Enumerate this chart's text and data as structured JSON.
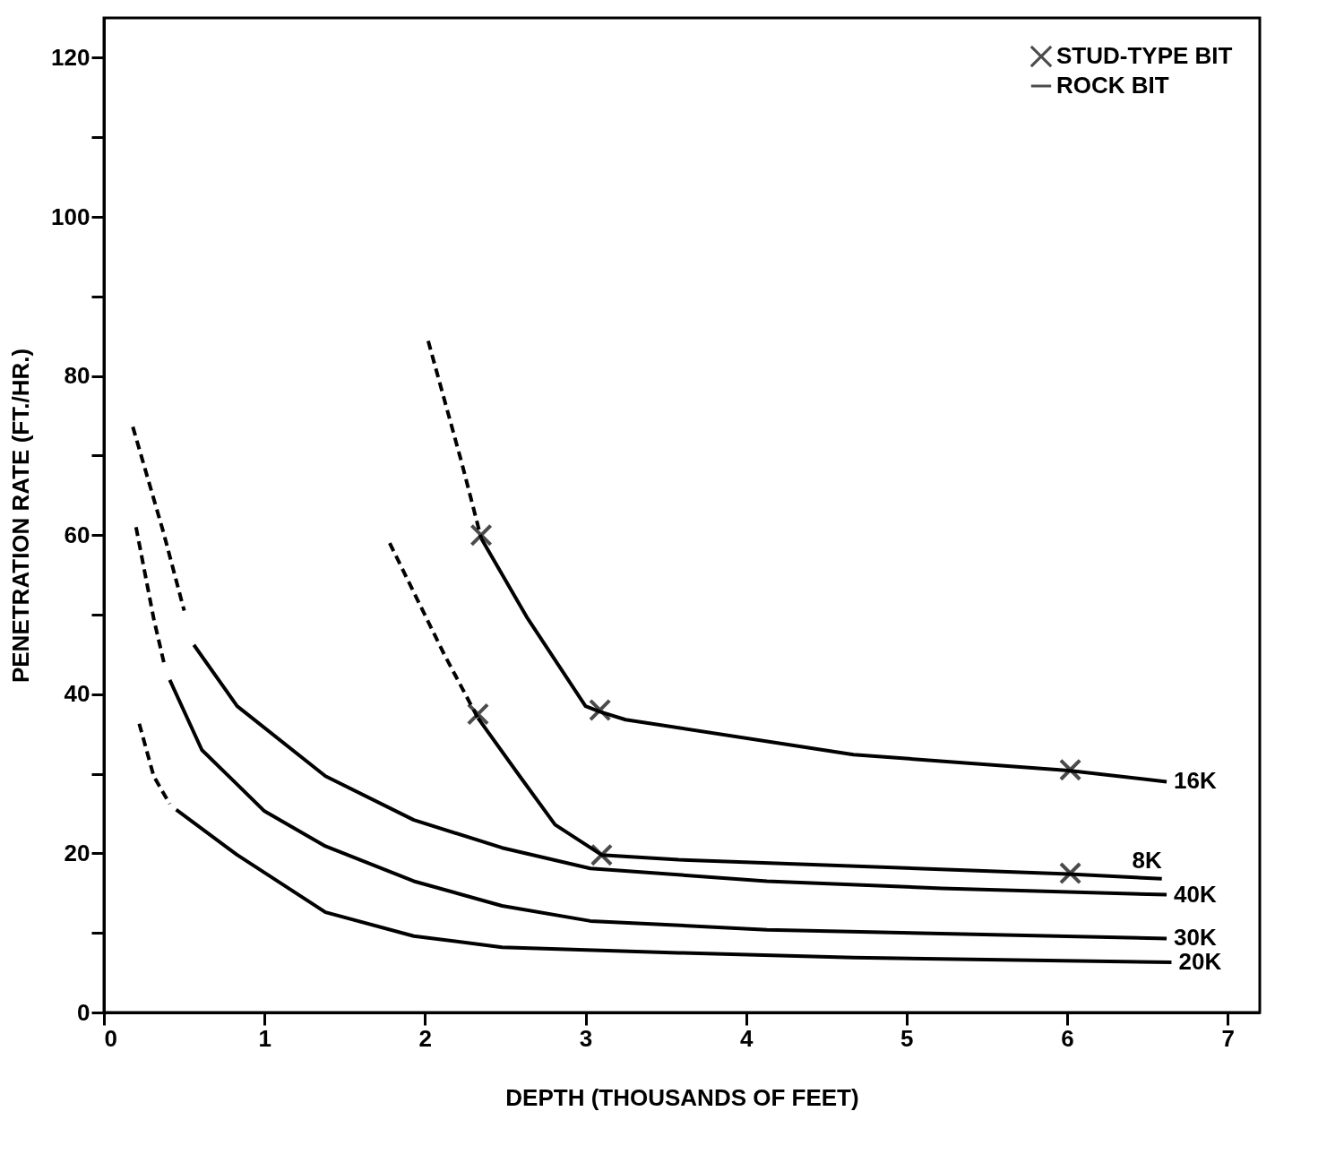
{
  "chart_data": {
    "type": "line",
    "xlabel": "DEPTH (THOUSANDS OF FEET)",
    "ylabel": "PENETRATION RATE (FT./HR.)",
    "xlim": [
      0,
      7.2
    ],
    "ylim": [
      0,
      125
    ],
    "xticks": [
      0,
      1,
      2,
      3,
      4,
      5,
      6,
      7
    ],
    "yticks": [
      0,
      {
        "value": 10,
        "label": null
      },
      20,
      {
        "value": 30,
        "label": null
      },
      40,
      {
        "value": 50,
        "label": null
      },
      60,
      {
        "value": 70,
        "label": null
      },
      80,
      {
        "value": 90,
        "label": null
      },
      100,
      {
        "value": 110,
        "label": null
      },
      120
    ],
    "grid": false,
    "legend": "top right",
    "series": [
      {
        "type": "scatter",
        "name": "STUD-TYPE BIT",
        "color": "#000000",
        "marker": "cross",
        "x": [
          2.35,
          3.09,
          6.02,
          2.33,
          3.1,
          6.02
        ],
        "values": [
          60,
          38,
          30.5,
          37.5,
          19.8,
          17.5
        ]
      },
      {
        "name": "ROCK BIT",
        "color": "#000000",
        "line_style": "solid",
        "x": [
          0.56,
          0.83,
          1.38,
          1.93,
          2.48,
          3.03,
          4.13,
          5.22,
          6.62
        ],
        "values": [
          46.2,
          38.5,
          29.7,
          24.2,
          20.7,
          18.1,
          16.5,
          15.6,
          14.8
        ]
      },
      {
        "color": "#000000",
        "line_style": "dashed",
        "x": [
          0.18,
          0.37,
          0.5
        ],
        "values": [
          73.6,
          60.4,
          50.5
        ]
      },
      {
        "color": "#000000",
        "line_style": "dashed",
        "x": [
          2.02,
          2.23,
          2.35
        ],
        "values": [
          84.4,
          69,
          59.6
        ]
      },
      {
        "color": "#000000",
        "line_style": "solid",
        "x": [
          2.35,
          2.64,
          3.0,
          3.09,
          3.25,
          4.67,
          6.01,
          6.62
        ],
        "values": [
          59.6,
          49.5,
          38.5,
          37.8,
          36.8,
          32.4,
          30.4,
          29
        ]
      },
      {
        "color": "#000000",
        "line_style": "dashed",
        "x": [
          1.78,
          2.12,
          2.33
        ],
        "values": [
          59,
          45,
          37
        ]
      },
      {
        "color": "#000000",
        "line_style": "solid",
        "x": [
          2.33,
          2.59,
          2.81,
          3.1,
          3.58,
          6.01,
          6.59
        ],
        "values": [
          37,
          29.7,
          23.6,
          19.8,
          19.2,
          17.4,
          16.8
        ]
      },
      {
        "color": "#000000",
        "line_style": "dashed",
        "x": [
          0.2,
          0.31,
          0.38
        ],
        "values": [
          61,
          49.5,
          43.4
        ]
      },
      {
        "color": "#000000",
        "line_style": "solid",
        "x": [
          0.41,
          0.61,
          1.0,
          1.38,
          1.93,
          2.48,
          3.03,
          4.13,
          5.22,
          6.62
        ],
        "values": [
          41.8,
          33,
          25.3,
          20.9,
          16.5,
          13.4,
          11.5,
          10.4,
          9.9,
          9.3
        ]
      },
      {
        "color": "#000000",
        "line_style": "dashed",
        "x": [
          0.22,
          0.31,
          0.41
        ],
        "values": [
          36.3,
          29.7,
          26.2
        ]
      },
      {
        "color": "#000000",
        "line_style": "solid",
        "x": [
          0.45,
          0.83,
          1.38,
          1.93,
          2.48,
          3.58,
          4.67,
          6.65
        ],
        "values": [
          25.5,
          19.8,
          12.6,
          9.6,
          8.2,
          7.5,
          6.9,
          6.3
        ]
      }
    ],
    "annotations": [
      {
        "text": "16K",
        "x": 6.62,
        "y": 29
      },
      {
        "text": "8K",
        "x": 6.59,
        "y": 16.8
      },
      {
        "text": "40K",
        "x": 6.62,
        "y": 14.8
      },
      {
        "text": "30K",
        "x": 6.62,
        "y": 9.3
      },
      {
        "text": "20K",
        "x": 6.65,
        "y": 6.3
      }
    ]
  }
}
